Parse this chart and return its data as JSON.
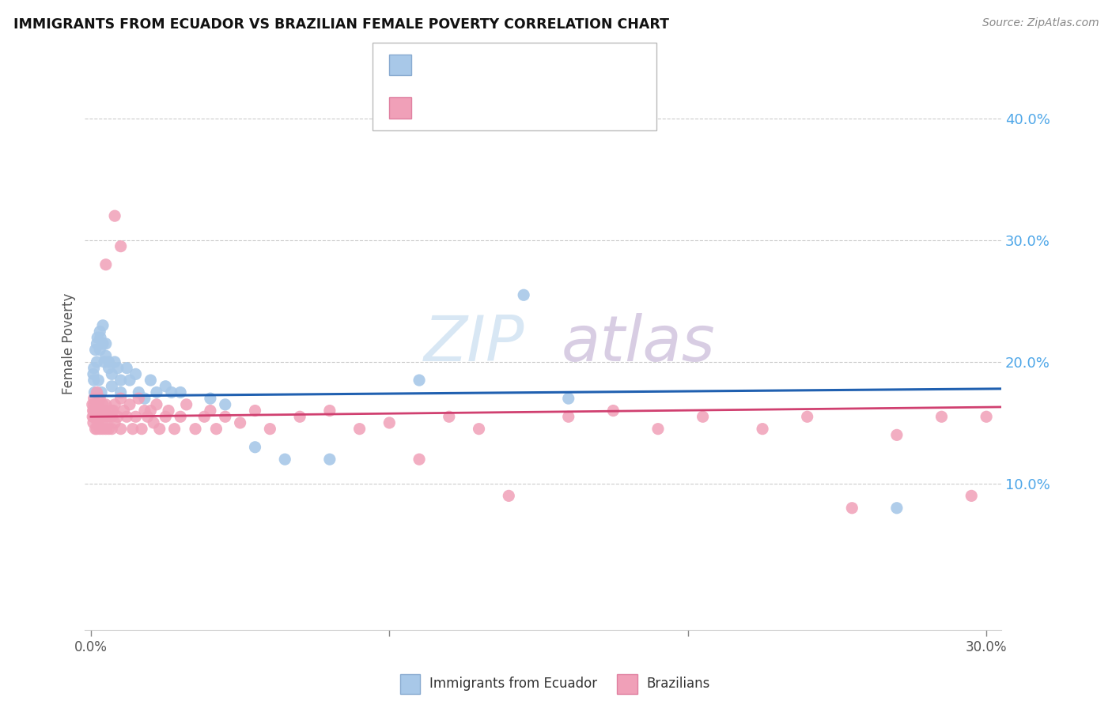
{
  "title": "IMMIGRANTS FROM ECUADOR VS BRAZILIAN FEMALE POVERTY CORRELATION CHART",
  "source": "Source: ZipAtlas.com",
  "ylabel": "Female Poverty",
  "ecuador_color": "#a8c8e8",
  "brazil_color": "#f0a0b8",
  "ecuador_line_color": "#2060b0",
  "brazil_line_color": "#d04070",
  "ytick_labels": [
    "10.0%",
    "20.0%",
    "30.0%",
    "40.0%"
  ],
  "ytick_values": [
    0.1,
    0.2,
    0.3,
    0.4
  ],
  "ylim": [
    -0.02,
    0.45
  ],
  "xlim": [
    -0.002,
    0.305
  ],
  "background_color": "#ffffff",
  "ecuador_x": [
    0.0008,
    0.001,
    0.001,
    0.0012,
    0.0015,
    0.002,
    0.002,
    0.0022,
    0.0025,
    0.003,
    0.003,
    0.0032,
    0.0035,
    0.004,
    0.004,
    0.0045,
    0.005,
    0.005,
    0.006,
    0.006,
    0.007,
    0.007,
    0.008,
    0.009,
    0.01,
    0.01,
    0.012,
    0.013,
    0.015,
    0.016,
    0.018,
    0.02,
    0.022,
    0.025,
    0.027,
    0.03,
    0.04,
    0.045,
    0.055,
    0.065,
    0.08,
    0.11,
    0.145,
    0.16,
    0.27
  ],
  "ecuador_y": [
    0.19,
    0.195,
    0.185,
    0.175,
    0.21,
    0.2,
    0.215,
    0.22,
    0.185,
    0.225,
    0.21,
    0.22,
    0.175,
    0.215,
    0.23,
    0.2,
    0.215,
    0.205,
    0.2,
    0.195,
    0.19,
    0.18,
    0.2,
    0.195,
    0.185,
    0.175,
    0.195,
    0.185,
    0.19,
    0.175,
    0.17,
    0.185,
    0.175,
    0.18,
    0.175,
    0.175,
    0.17,
    0.165,
    0.13,
    0.12,
    0.12,
    0.185,
    0.255,
    0.17,
    0.08
  ],
  "brazil_x": [
    0.0005,
    0.0006,
    0.0007,
    0.0008,
    0.0009,
    0.001,
    0.001,
    0.001,
    0.0012,
    0.0013,
    0.0015,
    0.0015,
    0.0017,
    0.002,
    0.002,
    0.002,
    0.002,
    0.002,
    0.0022,
    0.0025,
    0.003,
    0.003,
    0.003,
    0.003,
    0.003,
    0.0035,
    0.004,
    0.004,
    0.004,
    0.004,
    0.0045,
    0.005,
    0.005,
    0.005,
    0.006,
    0.006,
    0.007,
    0.007,
    0.007,
    0.0075,
    0.008,
    0.008,
    0.009,
    0.01,
    0.01,
    0.011,
    0.012,
    0.013,
    0.014,
    0.015,
    0.016,
    0.017,
    0.018,
    0.019,
    0.02,
    0.021,
    0.022,
    0.023,
    0.025,
    0.026,
    0.028,
    0.03,
    0.032,
    0.035,
    0.038,
    0.04,
    0.042,
    0.045,
    0.05,
    0.055,
    0.06,
    0.07,
    0.08,
    0.09,
    0.1,
    0.11,
    0.12,
    0.13,
    0.14,
    0.16,
    0.175,
    0.19,
    0.205,
    0.225,
    0.24,
    0.255,
    0.27,
    0.285,
    0.295,
    0.3,
    0.005,
    0.008,
    0.01
  ],
  "brazil_y": [
    0.165,
    0.155,
    0.16,
    0.15,
    0.155,
    0.165,
    0.16,
    0.17,
    0.155,
    0.16,
    0.155,
    0.145,
    0.16,
    0.165,
    0.155,
    0.145,
    0.16,
    0.175,
    0.15,
    0.165,
    0.155,
    0.145,
    0.16,
    0.17,
    0.155,
    0.16,
    0.15,
    0.165,
    0.145,
    0.155,
    0.16,
    0.155,
    0.145,
    0.165,
    0.155,
    0.145,
    0.16,
    0.155,
    0.145,
    0.16,
    0.165,
    0.15,
    0.155,
    0.17,
    0.145,
    0.16,
    0.155,
    0.165,
    0.145,
    0.155,
    0.17,
    0.145,
    0.16,
    0.155,
    0.16,
    0.15,
    0.165,
    0.145,
    0.155,
    0.16,
    0.145,
    0.155,
    0.165,
    0.145,
    0.155,
    0.16,
    0.145,
    0.155,
    0.15,
    0.16,
    0.145,
    0.155,
    0.16,
    0.145,
    0.15,
    0.12,
    0.155,
    0.145,
    0.09,
    0.155,
    0.16,
    0.145,
    0.155,
    0.145,
    0.155,
    0.08,
    0.14,
    0.155,
    0.09,
    0.155,
    0.28,
    0.32,
    0.295
  ],
  "watermark_text": "ZIPatlas",
  "legend_bottom_ecuador": "Immigrants from Ecuador",
  "legend_bottom_brazil": "Brazilians",
  "ytick_color": "#4da6e8",
  "xtick_color": "#555555"
}
